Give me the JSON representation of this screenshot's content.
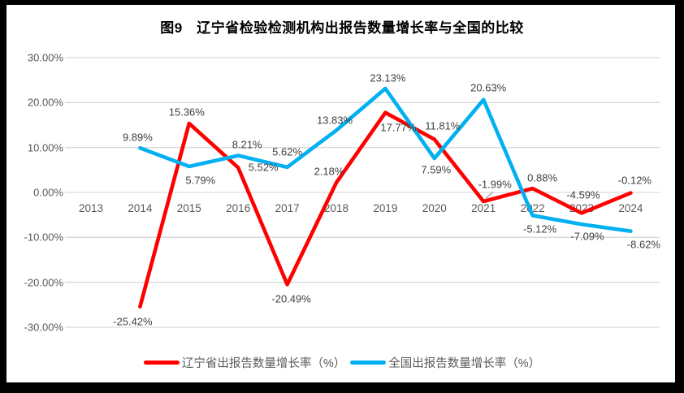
{
  "title": "图9　辽宁省检验检测机构出报告数量增长率与全国的比较",
  "colors": {
    "liaoning_red": "#FF0000",
    "national_blue": "#00B0F0",
    "gridline": "#D9D9D9",
    "axis_text": "#595959",
    "label_text": "#404040",
    "frame": "#000000",
    "background": "#FFFFFF",
    "leader_line": "#A6A6A6"
  },
  "chart_data": {
    "type": "line",
    "title": "图9　辽宁省检验检测机构出报告数量增长率与全国的比较",
    "categories": [
      "2013",
      "2014",
      "2015",
      "2016",
      "2017",
      "2018",
      "2019",
      "2020",
      "2021",
      "2022",
      "2023",
      "2024"
    ],
    "xlabel": "",
    "ylabel": "",
    "ylim": [
      -30,
      30
    ],
    "grid": true,
    "legend_position": "bottom",
    "y_ticks": [
      {
        "label": "30.00%",
        "value": 30
      },
      {
        "label": "20.00%",
        "value": 20
      },
      {
        "label": "10.00%",
        "value": 10
      },
      {
        "label": "0.00%",
        "value": 0
      },
      {
        "label": "-10.00%",
        "value": -10
      },
      {
        "label": "-20.00%",
        "value": -20
      },
      {
        "label": "-30.00%",
        "value": -30
      }
    ],
    "series": [
      {
        "name": "辽宁省出报告数量增长率（%）",
        "color": "#FF0000",
        "points": [
          {
            "year": "2014",
            "value": -25.42,
            "label": "-25.42%",
            "label_offset": [
              -9,
              18
            ]
          },
          {
            "year": "2015",
            "value": 15.36,
            "label": "15.36%",
            "label_offset": [
              -3,
              -14
            ]
          },
          {
            "year": "2016",
            "value": 5.52,
            "label": "5.52%",
            "label_offset": [
              31,
              0
            ]
          },
          {
            "year": "2017",
            "value": -20.49,
            "label": "-20.49%",
            "label_offset": [
              5,
              18
            ]
          },
          {
            "year": "2018",
            "value": 2.18,
            "label": "2.18%",
            "label_offset": [
              -9,
              -14
            ]
          },
          {
            "year": "2019",
            "value": 17.77,
            "label": "17.77%",
            "label_offset": [
              16,
              18
            ]
          },
          {
            "year": "2020",
            "value": 11.81,
            "label": "11.81%",
            "label_offset": [
              10,
              -17
            ]
          },
          {
            "year": "2021",
            "value": -1.99,
            "label": "-1.99%",
            "label_offset": [
              14,
              -21
            ],
            "leader": true
          },
          {
            "year": "2022",
            "value": 0.88,
            "label": "0.88%",
            "label_offset": [
              12,
              -13
            ]
          },
          {
            "year": "2023",
            "value": -4.59,
            "label": "-4.59%",
            "label_offset": [
              2,
              -22
            ]
          },
          {
            "year": "2024",
            "value": -0.12,
            "label": "-0.12%",
            "label_offset": [
              5,
              -16
            ]
          }
        ]
      },
      {
        "name": "全国出报告数量增长率（%）",
        "color": "#00B0F0",
        "points": [
          {
            "year": "2014",
            "value": 9.89,
            "label": "9.89%",
            "label_offset": [
              -3,
              -13
            ]
          },
          {
            "year": "2015",
            "value": 5.79,
            "label": "5.79%",
            "label_offset": [
              14,
              17
            ]
          },
          {
            "year": "2016",
            "value": 8.21,
            "label": "8.21%",
            "label_offset": [
              11,
              -14
            ]
          },
          {
            "year": "2017",
            "value": 5.62,
            "label": "5.62%",
            "label_offset": [
              0,
              -19
            ]
          },
          {
            "year": "2018",
            "value": 13.83,
            "label": "13.83%",
            "label_offset": [
              -2,
              -12
            ]
          },
          {
            "year": "2019",
            "value": 23.13,
            "label": "23.13%",
            "label_offset": [
              3,
              -13
            ]
          },
          {
            "year": "2020",
            "value": 7.59,
            "label": "7.59%",
            "label_offset": [
              2,
              14
            ]
          },
          {
            "year": "2021",
            "value": 20.63,
            "label": "20.63%",
            "label_offset": [
              6,
              -15
            ]
          },
          {
            "year": "2022",
            "value": -5.12,
            "label": "-5.12%",
            "label_offset": [
              9,
              17
            ]
          },
          {
            "year": "2023",
            "value": -7.09,
            "label": "-7.09%",
            "label_offset": [
              7,
              15
            ]
          },
          {
            "year": "2024",
            "value": -8.62,
            "label": "-8.62%",
            "label_offset": [
              16,
              16
            ]
          }
        ]
      }
    ]
  },
  "legend": {
    "items": [
      {
        "label": "辽宁省出报告数量增长率（%）",
        "color": "#FF0000"
      },
      {
        "label": "全国出报告数量增长率（%）",
        "color": "#00B0F0"
      }
    ]
  }
}
